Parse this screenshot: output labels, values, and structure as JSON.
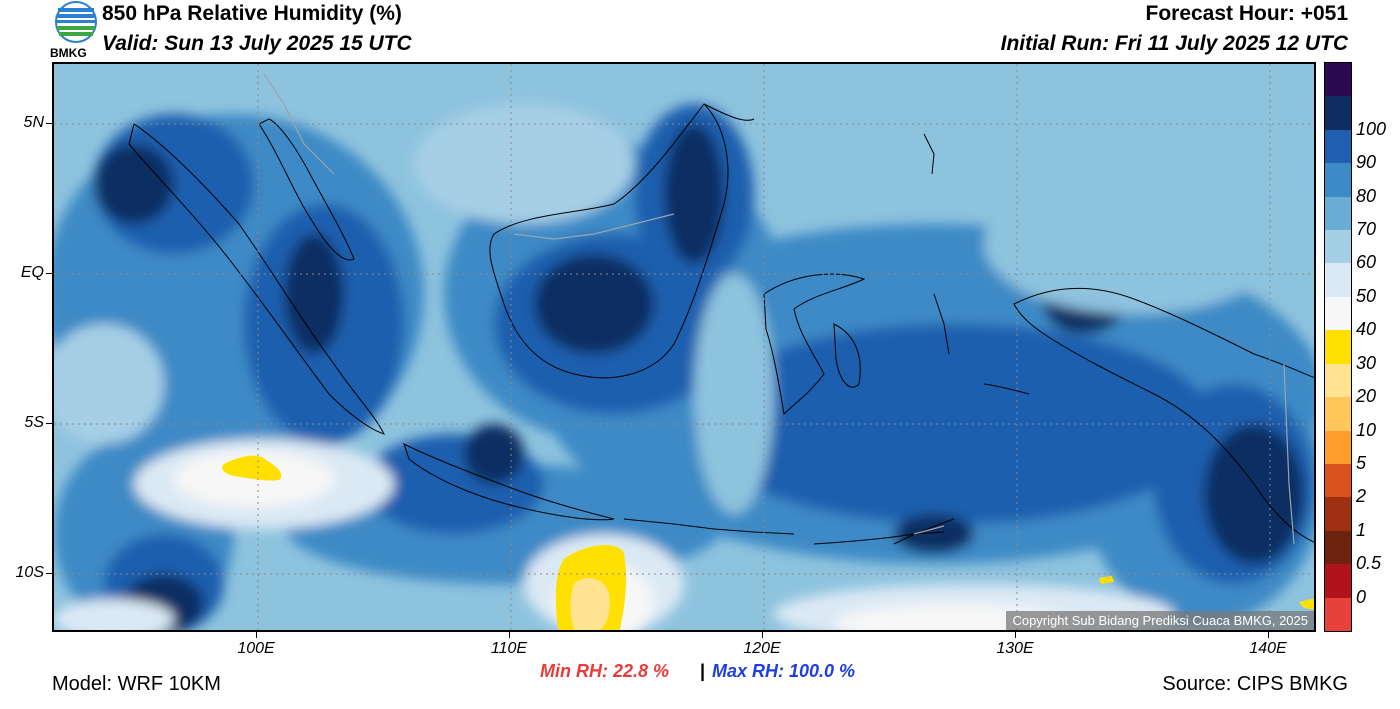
{
  "header": {
    "title": "850 hPa Relative Humidity (%)",
    "valid": "Valid: Sun 13 July 2025 15 UTC",
    "forecast_hour": "Forecast Hour: +051",
    "initial_run": "Initial Run: Fri 11 July 2025 12 UTC",
    "logo_text": "BMKG"
  },
  "axes": {
    "lat_labels": [
      "5N",
      "EQ",
      "5S",
      "10S"
    ],
    "lon_labels": [
      "100E",
      "110E",
      "120E",
      "130E",
      "140E"
    ]
  },
  "stats": {
    "min_rh": "Min RH:  22.8 %",
    "separator": "|",
    "max_rh": "Max RH: 100.0 %"
  },
  "footer": {
    "model": "Model: WRF 10KM",
    "source": "Source: CIPS BMKG",
    "copyright": "Copyright Sub Bidang Prediksi Cuaca BMKG, 2025"
  },
  "colorbar": {
    "labels": [
      "100",
      "90",
      "80",
      "70",
      "60",
      "50",
      "40",
      "30",
      "20",
      "10",
      "5",
      "2",
      "1",
      "0.5",
      "0"
    ],
    "colors": [
      "#2b0a4f",
      "#0d2d63",
      "#1f5fae",
      "#3c8ac6",
      "#6aaed6",
      "#a6cfe6",
      "#dbe9f4",
      "#f7f7f7",
      "#ffe000",
      "#ffe391",
      "#ffc75a",
      "#ff9d2b",
      "#d9531e",
      "#9e3111",
      "#6e2210",
      "#b0141a",
      "#e8403a"
    ]
  },
  "colors": {
    "min_rh": "#e83b3b",
    "max_rh": "#1f3ee0"
  }
}
